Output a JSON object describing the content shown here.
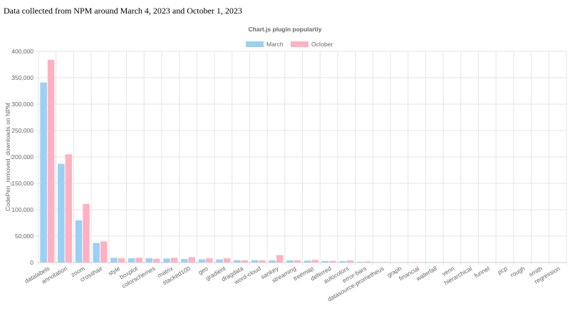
{
  "caption": "Data collected from NPM around March 4, 2023 and October 1, 2023",
  "chart_data": {
    "type": "bar",
    "title": "Chart.js plugin populartiy",
    "xlabel": "",
    "ylabel": "CodePen_removed_downloads on NPM",
    "ylim": [
      0,
      400000
    ],
    "yticks": [
      0,
      50000,
      100000,
      150000,
      200000,
      250000,
      300000,
      350000,
      400000
    ],
    "ytick_labels": [
      "0",
      "50,000",
      "100,000",
      "150,000",
      "200,000",
      "250,000",
      "300,000",
      "350,000",
      "400,000"
    ],
    "grid": true,
    "legend_position": "top",
    "categories": [
      "datalabels",
      "annotation",
      "zoom",
      "crosshair",
      "style",
      "boxplot",
      "colorschemes",
      "matrix",
      "stacked100",
      "geo",
      "gradient",
      "dragdata",
      "word-cloud",
      "sankey",
      "streaming",
      "treemap",
      "deferred",
      "autocolors",
      "error-bars",
      "datasource-prometheus",
      "graph",
      "financial",
      "waterfall",
      "venn",
      "hierarchical",
      "funnel",
      "pcp",
      "rough",
      "smith",
      "regression"
    ],
    "series": [
      {
        "name": "March",
        "color": "#9ad0f5",
        "values": [
          341000,
          187000,
          80000,
          37000,
          9000,
          8000,
          8000,
          7500,
          6500,
          6000,
          6000,
          4500,
          4500,
          4000,
          4000,
          3500,
          3000,
          2500,
          1500,
          800,
          400,
          300,
          300,
          200,
          200,
          150,
          150,
          100,
          100,
          100
        ]
      },
      {
        "name": "October",
        "color": "#ffb1c1",
        "values": [
          384000,
          205000,
          111000,
          40000,
          8000,
          9000,
          7000,
          9000,
          10000,
          8000,
          8000,
          4000,
          4000,
          14000,
          4000,
          5000,
          3000,
          4000,
          2000,
          1000,
          500,
          400,
          400,
          300,
          300,
          200,
          200,
          150,
          150,
          150
        ]
      }
    ]
  }
}
